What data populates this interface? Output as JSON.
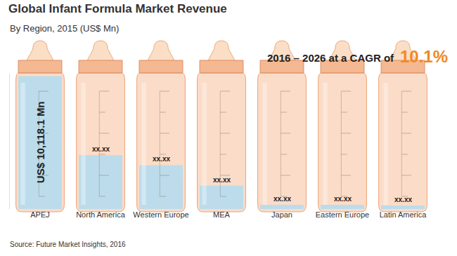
{
  "chart_data": {
    "type": "bar",
    "title": "Global Infant Formula Market Revenue",
    "subtitle": "By Region, 2015 (US$ Mn)",
    "annotations": [
      "2016 – 2026 at a CAGR of",
      "10.1%",
      "Source: Future Market Insights, 2016"
    ],
    "categories": [
      "APEJ",
      "North America",
      "Western Europe",
      "MEA",
      "Japan",
      "Eastern Europe",
      "Latin America"
    ],
    "values": [
      10118.1,
      4090,
      3340,
      1780,
      320,
      320,
      270
    ],
    "value_labels": [
      "US$ 10,118.1 Mn",
      "xx.xx",
      "xx.xx",
      "xx.xx",
      "xx.xx",
      "xx.xx",
      "xx.xx"
    ],
    "data_labels": true,
    "color": "#b7dcee",
    "ylim": [
      0,
      10300
    ],
    "grid": false,
    "tick_labels": "x"
  }
}
